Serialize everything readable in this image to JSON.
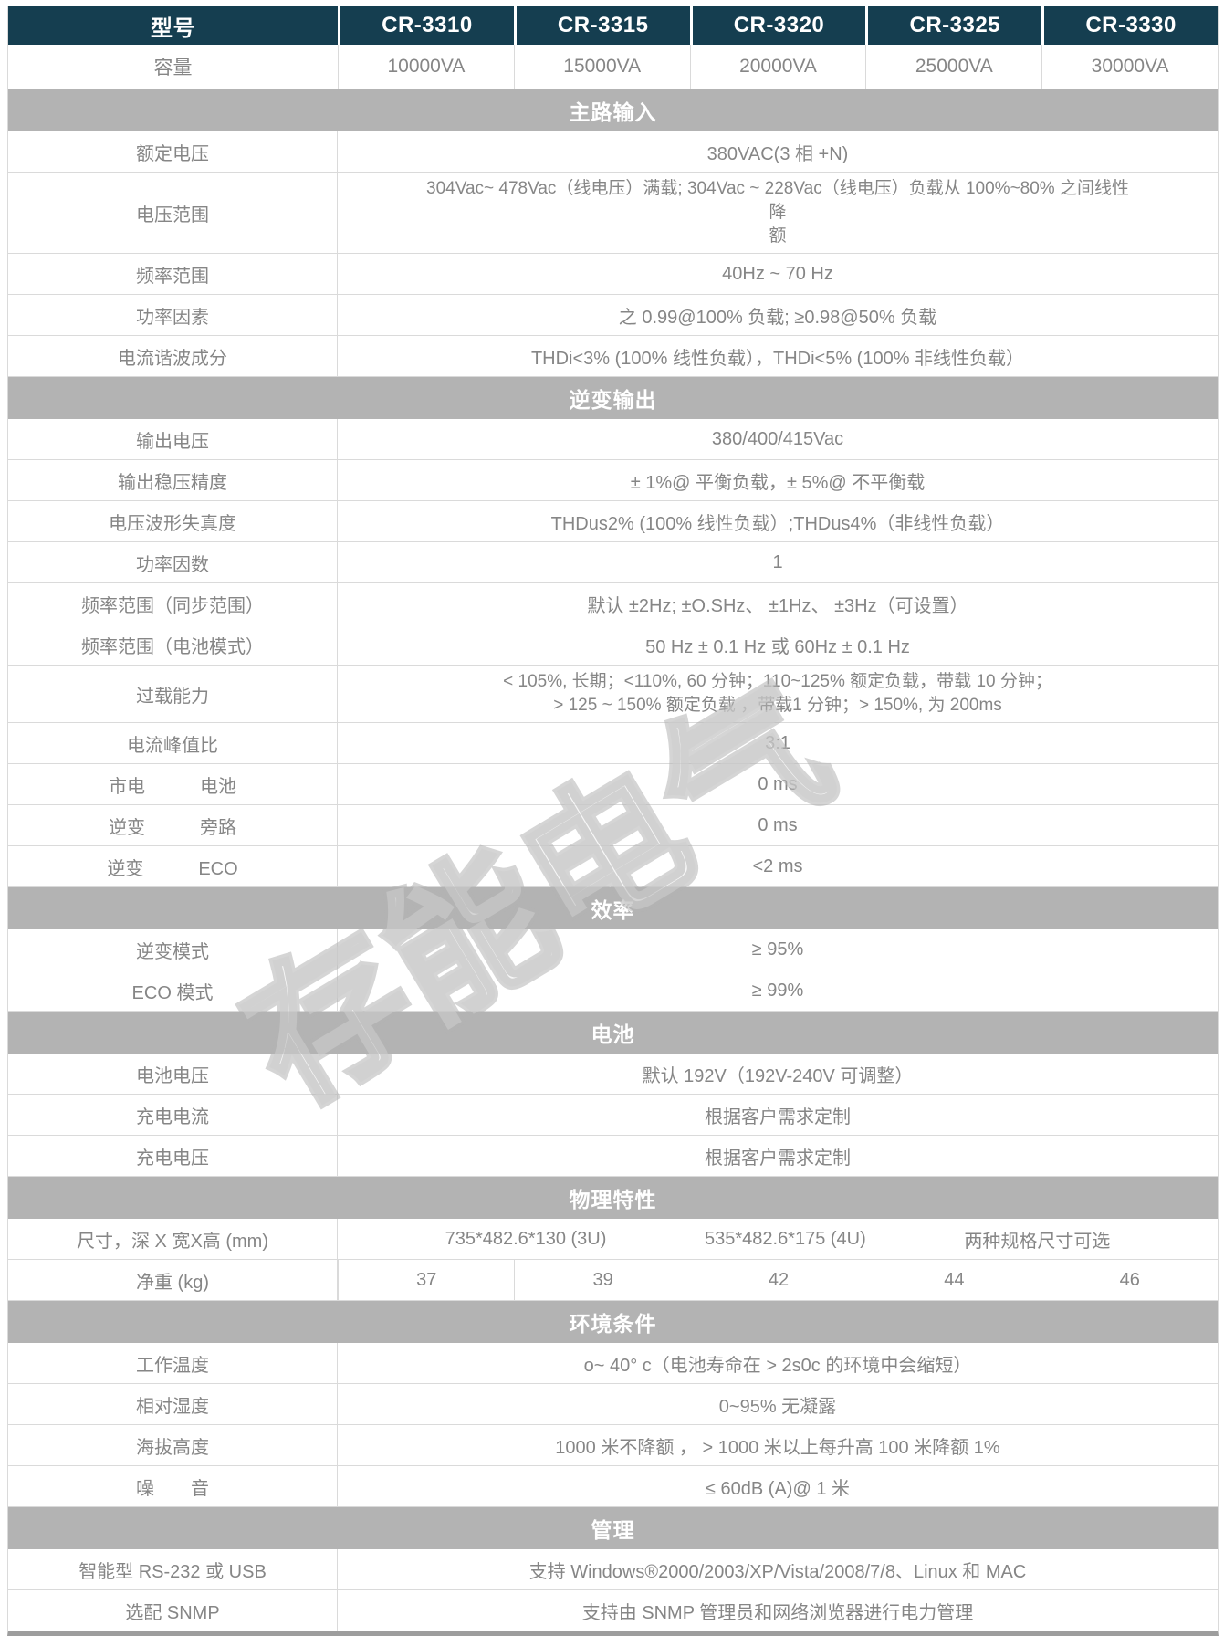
{
  "watermark": "存能电气",
  "colors": {
    "header_bg": "#153e50",
    "section_bg": "#b3b3b3",
    "body_text": "#868686",
    "border": "#dadada",
    "bottom_bar": "#9d9d9d"
  },
  "table": {
    "header": {
      "label": "型号",
      "models": [
        "CR-3310",
        "CR-3315",
        "CR-3320",
        "CR-3325",
        "CR-3330"
      ]
    },
    "capacity": {
      "label": "容量",
      "values": [
        "10000VA",
        "15000VA",
        "20000VA",
        "25000VA",
        "30000VA"
      ]
    },
    "groups": [
      {
        "section": "主路输入",
        "rows": [
          {
            "label": "额定电压",
            "value": "380VAC(3 相 +N)"
          },
          {
            "label": "电压范围",
            "lines": [
              "304Vac~ 478Vac（线电压）满载;   304Vac ~ 228Vac（线电压）负载从 100%~80% 之间线性",
              "降",
              "额"
            ]
          },
          {
            "label": "频率范围",
            "value": "40Hz ~ 70 Hz"
          },
          {
            "label": "功率因素",
            "value": "之 0.99@100% 负载; ≥0.98@50% 负载"
          },
          {
            "label": "电流谐波成分",
            "value": "THDi<3% (100% 线性负载），THDi<5% (100% 非线性负载）"
          }
        ]
      },
      {
        "section": "逆变输出",
        "rows": [
          {
            "label": "输出电压",
            "value": "380/400/415Vac"
          },
          {
            "label": "输出稳压精度",
            "value": "± 1%@ 平衡负载，± 5%@ 不平衡载"
          },
          {
            "label": "电压波形失真度",
            "value": "THDus2% (100% 线性负载）;THDus4%（非线性负载）"
          },
          {
            "label": "功率因数",
            "value": "1"
          },
          {
            "label": "频率范围（同步范围）",
            "value": "默认 ±2Hz; ±O.SHz、 ±1Hz、 ±3Hz（可设置）"
          },
          {
            "label": "频率范围（电池模式）",
            "value": "50 Hz ± 0.1 Hz 或 60Hz ± 0.1 Hz"
          },
          {
            "label": "过载能力",
            "lines": [
              "< 105%, 长期；<110%, 60 分钟；110~125% 额定负载，带载 10 分钟；",
              "> 125 ~ 150% 额定负载 ，带载1 分钟；> 150%, 为 200ms"
            ]
          },
          {
            "label": "电流峰值比",
            "value": "3:1"
          },
          {
            "label": "市电　　　电池",
            "value": "0 ms"
          },
          {
            "label": "逆变　　　旁路",
            "value": "0 ms"
          },
          {
            "label": "逆变　　　ECO",
            "value": "<2 ms"
          }
        ]
      },
      {
        "section": "效率",
        "rows": [
          {
            "label": "逆变模式",
            "value": "≥ 95%"
          },
          {
            "label": "ECO 模式",
            "value": "≥ 99%"
          }
        ]
      },
      {
        "section": "电池",
        "rows": [
          {
            "label": "电池电压",
            "value": "默认 192V（192V-240V 可调整）"
          },
          {
            "label": "充电电流",
            "value": "根据客户需求定制"
          },
          {
            "label": "充电电压",
            "value": "根据客户需求定制"
          }
        ]
      },
      {
        "section": "物理特性",
        "rows": [
          {
            "label": "尺寸，深 X 宽X高 (mm)",
            "chunks": [
              "735*482.6*130 (3U)",
              "535*482.6*175 (4U)",
              "两种规格尺寸可选"
            ]
          },
          {
            "label": "净重 (kg)",
            "cells": [
              "37",
              "39"
            ],
            "merged": [
              "42",
              "44",
              "46"
            ]
          }
        ]
      },
      {
        "section": "环境条件",
        "rows": [
          {
            "label": "工作温度",
            "value": "o~ 40°  c（电池寿命在 > 2s0c 的环境中会缩短）"
          },
          {
            "label": "相对湿度",
            "value": "0~95% 无凝露"
          },
          {
            "label": "海拔高度",
            "value": "1000 米不降额 ， > 1000 米以上每升高 100 米降额 1%"
          },
          {
            "label": "噪　　音",
            "value": "≤ 60dB (A)@ 1 米"
          }
        ]
      },
      {
        "section": "管理",
        "rows": [
          {
            "label": "智能型 RS-232 或 USB",
            "value": "支持 Windows®2000/2003/XP/Vista/2008/7/8、Linux 和 MAC"
          },
          {
            "label": "选配 SNMP",
            "value": "支持由 SNMP 管理员和网络浏览器进行电力管理"
          }
        ]
      }
    ]
  }
}
